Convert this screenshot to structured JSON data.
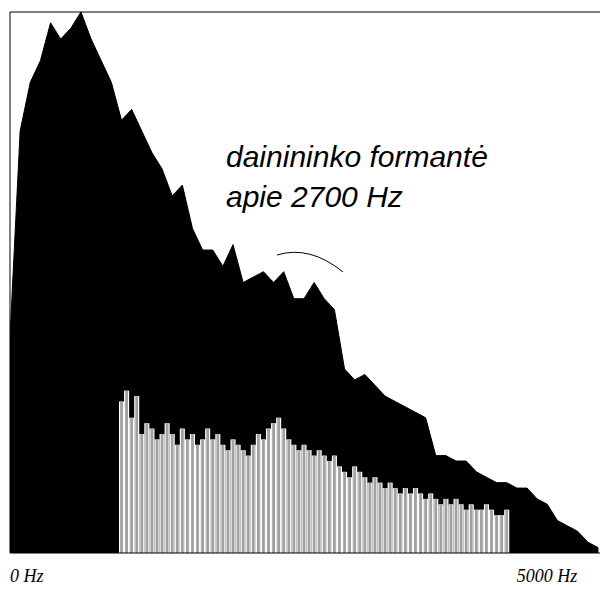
{
  "chart_data": {
    "type": "line",
    "annotations": [
      "dainininko formantė",
      "apie 2700 Hz"
    ],
    "xlim": [
      0,
      5820
    ],
    "xticks": [
      {
        "value": 0,
        "label": "0 Hz"
      },
      {
        "value": 5000,
        "label": "5000 Hz"
      }
    ],
    "ylim": [
      0,
      100
    ],
    "tick_labels": "x",
    "grid": false,
    "series": [
      {
        "type": "area",
        "color": "#000000",
        "x": [
          0,
          100,
          200,
          300,
          400,
          500,
          600,
          700,
          800,
          900,
          1000,
          1100,
          1200,
          1300,
          1400,
          1500,
          1600,
          1700,
          1800,
          1900,
          2000,
          2100,
          2200,
          2300,
          2400,
          2500,
          2600,
          2700,
          2800,
          2900,
          3000,
          3100,
          3200,
          3300,
          3400,
          3500,
          3600,
          3700,
          3800,
          3900,
          4000,
          4100,
          4200,
          4300,
          4400,
          4500,
          4600,
          4700,
          4800,
          4900,
          5000,
          5100,
          5200,
          5300,
          5400,
          5500,
          5600,
          5700,
          5800
        ],
        "values": [
          40,
          78,
          87,
          91,
          98,
          95,
          97,
          100,
          95,
          91,
          87,
          80,
          82,
          78,
          74,
          71,
          66,
          68,
          60,
          56,
          56,
          53,
          57,
          50,
          51,
          52,
          50,
          52,
          47,
          47,
          50,
          47,
          45,
          34,
          32,
          33,
          31,
          29,
          28,
          27,
          26,
          25,
          18,
          18,
          17,
          17,
          15,
          14,
          13,
          13,
          12,
          12,
          10,
          9,
          6,
          5,
          4,
          2,
          1
        ]
      },
      {
        "type": "bar",
        "color": "#a0a0a0",
        "x": [
          1100,
          1150,
          1200,
          1250,
          1300,
          1350,
          1400,
          1450,
          1500,
          1550,
          1600,
          1650,
          1700,
          1750,
          1800,
          1850,
          1900,
          1950,
          2000,
          2050,
          2100,
          2150,
          2200,
          2250,
          2300,
          2350,
          2400,
          2450,
          2500,
          2550,
          2600,
          2650,
          2700,
          2750,
          2800,
          2850,
          2900,
          2950,
          3000,
          3050,
          3100,
          3150,
          3200,
          3250,
          3300,
          3350,
          3400,
          3450,
          3500,
          3550,
          3600,
          3650,
          3700,
          3750,
          3800,
          3850,
          3900,
          3950,
          4000,
          4050,
          4100,
          4150,
          4200,
          4250,
          4300,
          4350,
          4400,
          4450,
          4500,
          4550,
          4600,
          4650,
          4700,
          4750,
          4800,
          4850,
          4900
        ],
        "values": [
          28,
          30,
          25,
          29,
          22,
          24,
          23,
          21,
          22,
          24,
          22,
          20,
          23,
          21,
          22,
          20,
          21,
          23,
          21,
          22,
          20,
          19,
          21,
          20,
          19,
          18,
          20,
          22,
          21,
          23,
          24,
          25,
          23,
          21,
          20,
          19,
          20,
          19,
          18,
          19,
          18,
          17,
          18,
          16,
          15,
          14,
          16,
          15,
          14,
          13,
          14,
          13,
          12,
          13,
          12,
          11,
          12,
          11,
          12,
          11,
          10,
          11,
          10,
          9,
          10,
          9,
          10,
          9,
          8,
          9,
          8,
          8,
          9,
          8,
          7,
          7,
          8
        ]
      }
    ]
  }
}
